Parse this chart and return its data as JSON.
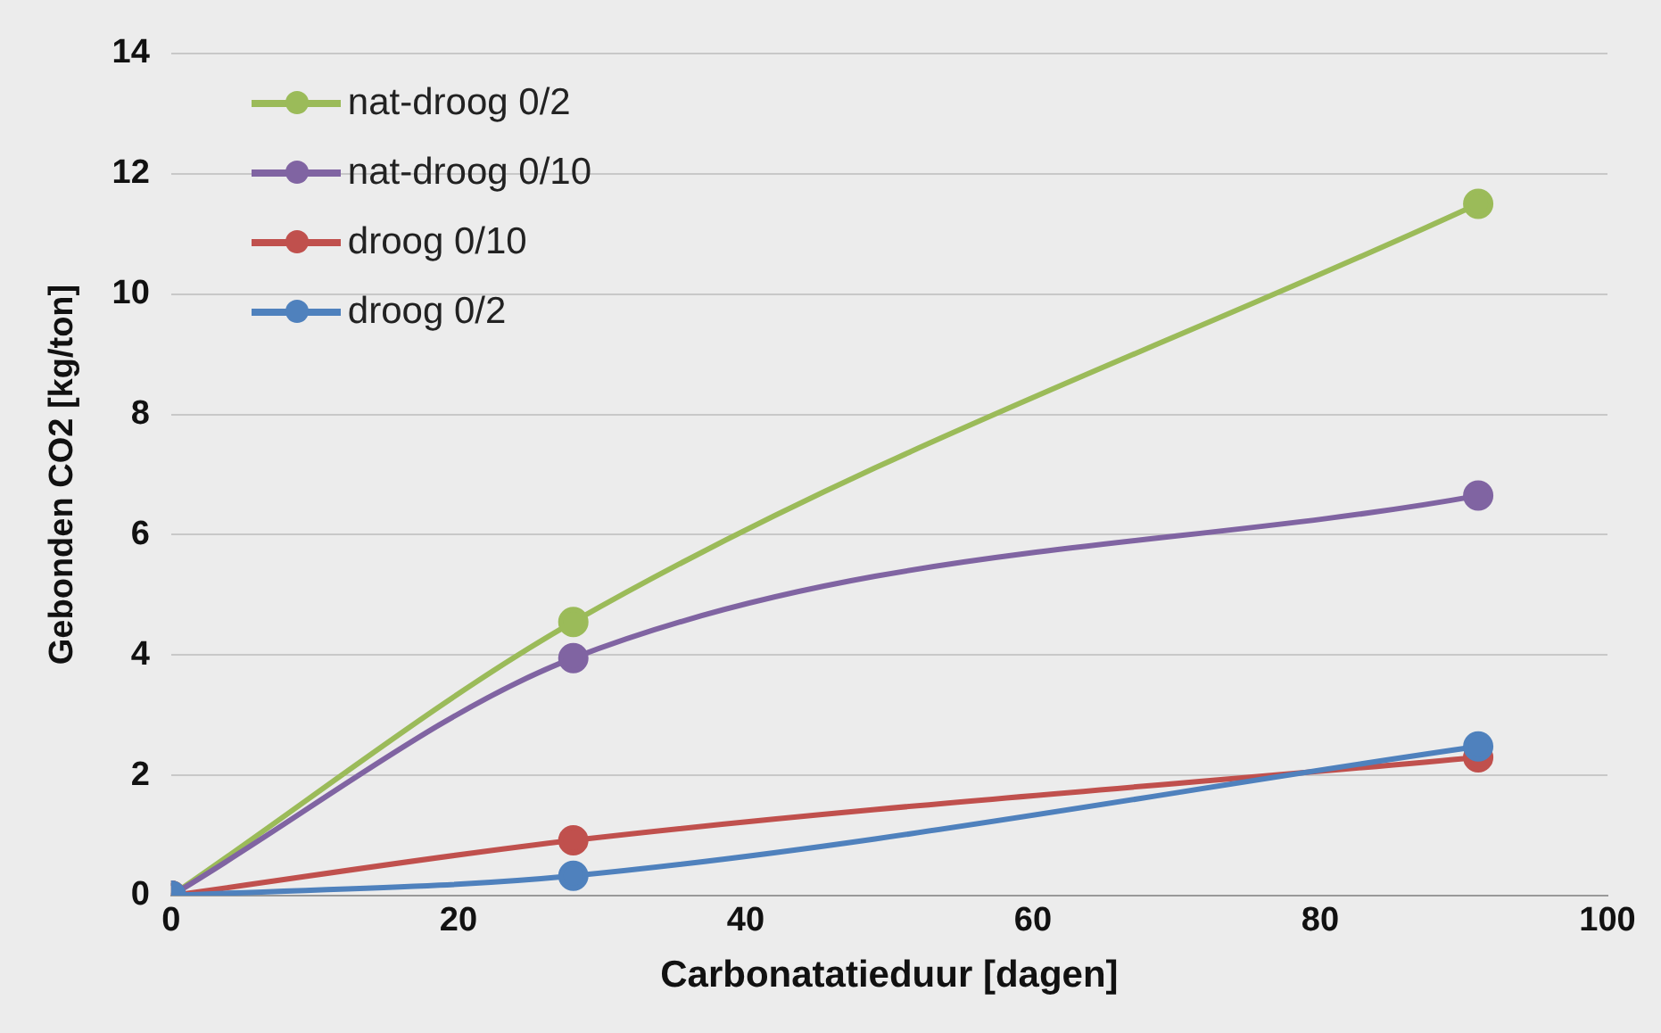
{
  "chart_data": {
    "type": "line",
    "xlabel": "Carbonatatieduur [dagen]",
    "ylabel": "Gebonden CO2 [kg/ton]",
    "x": [
      0,
      28,
      91
    ],
    "series": [
      {
        "name": "nat-droog 0/2",
        "color": "#9bbb59",
        "values": [
          0,
          4.55,
          11.5
        ]
      },
      {
        "name": "nat-droog 0/10",
        "color": "#8064a2",
        "values": [
          0,
          3.95,
          6.65
        ]
      },
      {
        "name": "droog 0/10",
        "color": "#c0504d",
        "values": [
          0,
          0.92,
          2.3
        ]
      },
      {
        "name": "droog 0/2",
        "color": "#4f81bd",
        "values": [
          0,
          0.33,
          2.48
        ]
      }
    ],
    "xlim": [
      0,
      100
    ],
    "xticks": [
      0,
      20,
      40,
      60,
      80,
      100
    ],
    "ylim": [
      0,
      14
    ],
    "yticks": [
      0,
      2,
      4,
      6,
      8,
      10,
      12,
      14
    ],
    "grid": "y",
    "legend": "top left",
    "marker": "circle",
    "line_style": "solid"
  }
}
